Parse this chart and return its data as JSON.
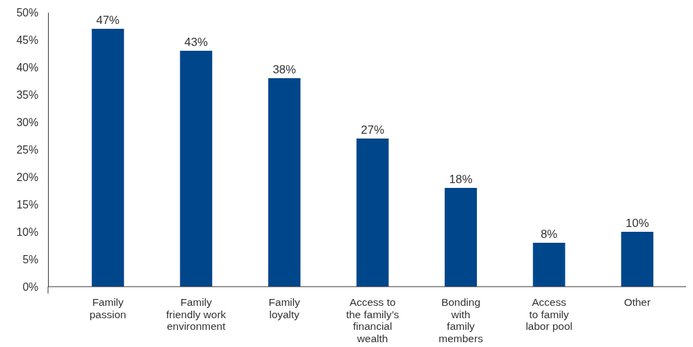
{
  "chart_data": {
    "type": "bar",
    "categories": [
      "Family\npassion",
      "Family\nfriendly work\nenvironment",
      "Family\nloyalty",
      "Access to\nthe family’s\nfinancial\nwealth",
      "Bonding\nwith\nfamily\nmembers",
      "Access\nto family\nlabor pool",
      "Other"
    ],
    "values": [
      47,
      43,
      38,
      27,
      18,
      8,
      10
    ],
    "value_labels": [
      "47%",
      "43%",
      "38%",
      "27%",
      "18%",
      "8%",
      "10%"
    ],
    "color": "#00468b",
    "ylim": [
      0,
      50
    ],
    "yticks": [
      {
        "value": 0,
        "label": "0%"
      },
      {
        "value": 5,
        "label": "5%"
      },
      {
        "value": 10,
        "label": "10%"
      },
      {
        "value": 15,
        "label": "15%"
      },
      {
        "value": 20,
        "label": "20%"
      },
      {
        "value": 25,
        "label": "25%"
      },
      {
        "value": 30,
        "label": "30%"
      },
      {
        "value": 35,
        "label": "35%"
      },
      {
        "value": 40,
        "label": "40%"
      },
      {
        "value": 45,
        "label": "45%"
      },
      {
        "value": 50,
        "label": "50%"
      }
    ],
    "grid": false
  }
}
